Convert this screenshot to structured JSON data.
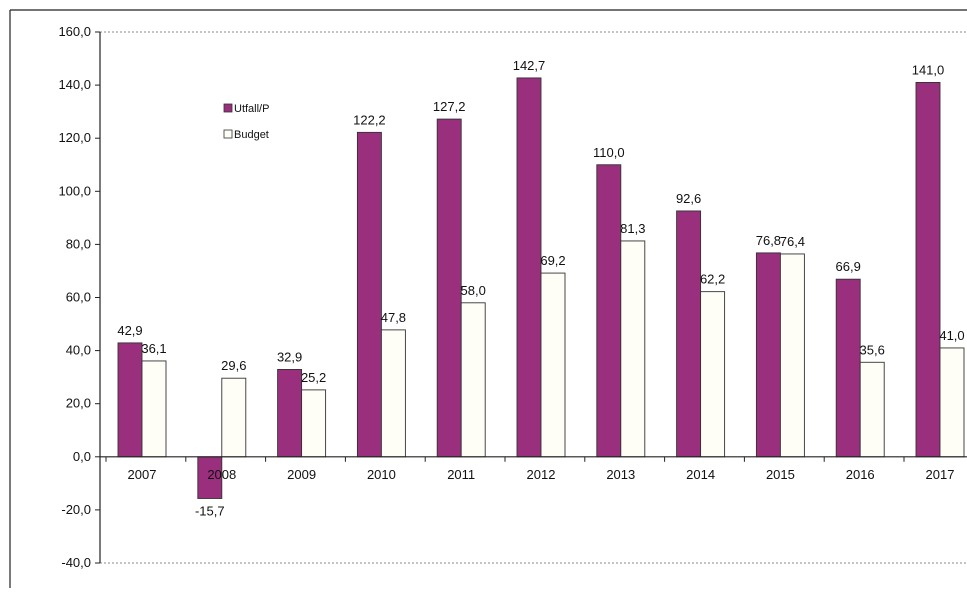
{
  "chart_data": {
    "type": "bar",
    "categories": [
      "2007",
      "2008",
      "2009",
      "2010",
      "2011",
      "2012",
      "2013",
      "2014",
      "2015",
      "2016",
      "2017"
    ],
    "series": [
      {
        "name": "Utfall/P",
        "color": "#9a2f7e",
        "values": [
          42.9,
          -15.7,
          32.9,
          122.2,
          127.2,
          142.7,
          110.0,
          92.6,
          76.8,
          66.9,
          141.0
        ],
        "labels": [
          "42,9",
          "-15,7",
          "32,9",
          "122,2",
          "127,2",
          "142,7",
          "110,0",
          "92,6",
          "76,8",
          "66,9",
          "141,0"
        ]
      },
      {
        "name": "Budget",
        "color": "#fffef6",
        "values": [
          36.1,
          29.6,
          25.2,
          47.8,
          58.0,
          69.2,
          81.3,
          62.2,
          76.4,
          35.6,
          41.0
        ],
        "labels": [
          "36,1",
          "29,6",
          "25,2",
          "47,8",
          "58,0",
          "69,2",
          "81,3",
          "62,2",
          "76,4",
          "35,6",
          "41,0"
        ]
      }
    ],
    "ylim": [
      -40,
      160
    ],
    "yticks": [
      "160,0",
      "140,0",
      "120,0",
      "100,0",
      "80,0",
      "60,0",
      "40,0",
      "20,0",
      "0,0",
      "-20,0",
      "-40,0"
    ],
    "ytick_values": [
      160,
      140,
      120,
      100,
      80,
      60,
      40,
      20,
      0,
      -20,
      -40
    ],
    "grid": false,
    "legend_position": "top-left",
    "title": "",
    "xlabel": "",
    "ylabel": ""
  }
}
